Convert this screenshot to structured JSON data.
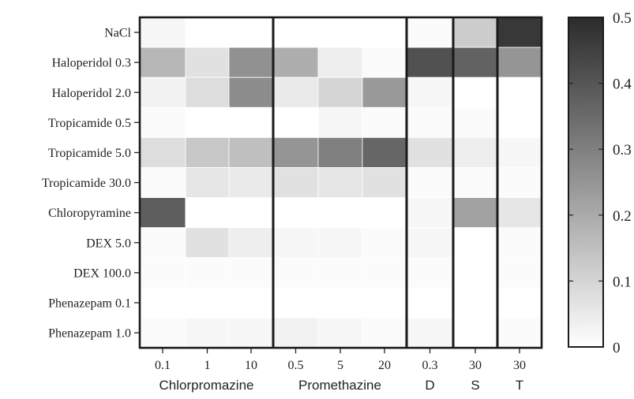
{
  "chart_data": {
    "type": "heatmap",
    "title": "",
    "xlabel": "",
    "ylabel": "",
    "rows": [
      "NaCl",
      "Haloperidol 0.3",
      "Haloperidol 2.0",
      "Tropicamide 0.5",
      "Tropicamide 5.0",
      "Tropicamide 30.0",
      "Chloropyramine",
      "DEX 5.0",
      "DEX 100.0",
      "Phenazepam 0.1",
      "Phenazepam 1.0"
    ],
    "columns": [
      "0.1",
      "1",
      "10",
      "0.5",
      "5",
      "20",
      "0.3",
      "30",
      "30"
    ],
    "column_groups": [
      {
        "label": "Chlorpromazine",
        "span": 3
      },
      {
        "label": "Promethazine",
        "span": 3
      },
      {
        "label": "D",
        "span": 1
      },
      {
        "label": "S",
        "span": 1
      },
      {
        "label": "T",
        "span": 1
      }
    ],
    "values": [
      [
        0.02,
        0.0,
        0.0,
        0.0,
        0.0,
        0.0,
        0.01,
        0.12,
        0.47
      ],
      [
        0.17,
        0.07,
        0.26,
        0.19,
        0.04,
        0.01,
        0.41,
        0.37,
        0.25
      ],
      [
        0.03,
        0.08,
        0.27,
        0.05,
        0.1,
        0.24,
        0.02,
        0.0,
        0.0
      ],
      [
        0.01,
        0.0,
        0.0,
        0.0,
        0.02,
        0.01,
        0.01,
        0.01,
        0.0
      ],
      [
        0.08,
        0.13,
        0.15,
        0.25,
        0.3,
        0.36,
        0.07,
        0.04,
        0.02
      ],
      [
        0.01,
        0.06,
        0.05,
        0.07,
        0.06,
        0.07,
        0.01,
        0.01,
        0.01
      ],
      [
        0.38,
        0.0,
        0.0,
        0.0,
        0.0,
        0.0,
        0.02,
        0.22,
        0.06
      ],
      [
        0.01,
        0.07,
        0.04,
        0.02,
        0.02,
        0.01,
        0.02,
        0.0,
        0.01
      ],
      [
        0.01,
        0.01,
        0.01,
        0.01,
        0.01,
        0.01,
        0.01,
        0.0,
        0.01
      ],
      [
        0.0,
        0.0,
        0.0,
        0.0,
        0.0,
        0.0,
        0.0,
        0.0,
        0.0
      ],
      [
        0.01,
        0.02,
        0.02,
        0.03,
        0.02,
        0.01,
        0.02,
        0.0,
        0.01
      ]
    ],
    "colorbar": {
      "range": [
        0,
        0.5
      ],
      "ticks": [
        0,
        0.1,
        0.2,
        0.3,
        0.4,
        0.5
      ],
      "tick_labels": [
        "0",
        "0.1",
        "0.2",
        "0.3",
        "0.4",
        "0.5"
      ],
      "colormap": [
        "#ffffff",
        "#2b2b2b"
      ]
    },
    "grid": false,
    "legend": "right"
  }
}
